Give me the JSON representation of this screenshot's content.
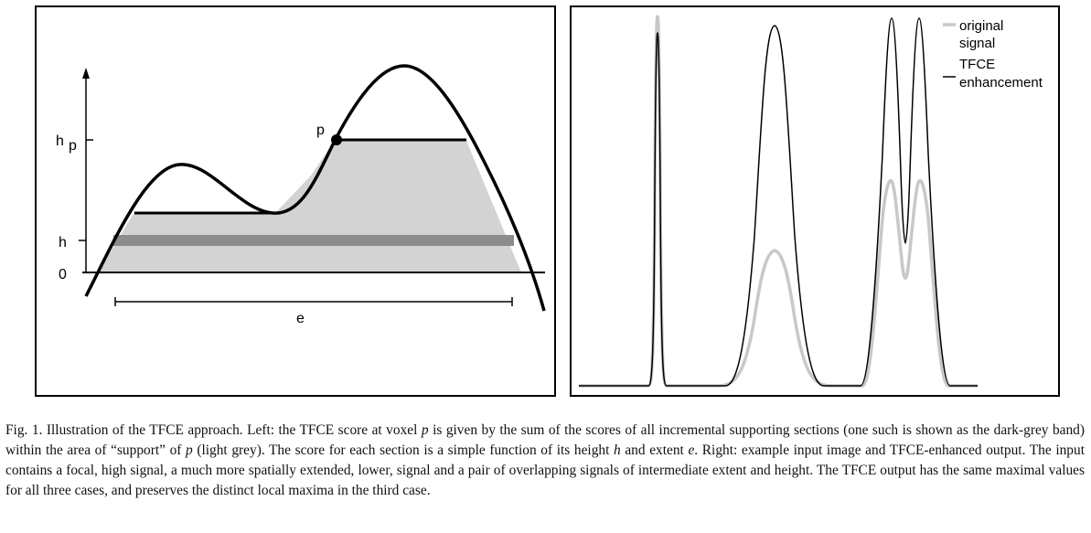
{
  "left_figure": {
    "y_axis_labels": {
      "h_p": "h",
      "h_p_sub": "p",
      "h": "h",
      "zero": "0"
    },
    "point_label": "p",
    "extent_label": "e"
  },
  "right_figure": {
    "legend": [
      {
        "label_line1": "original",
        "label_line2": "signal",
        "color": "#c8c8c8"
      },
      {
        "label_line1": "TFCE",
        "label_line2": "enhancement",
        "color": "#000000"
      }
    ]
  },
  "caption": {
    "t1": "Fig. 1. Illustration of the TFCE approach. Left: the TFCE score at voxel ",
    "v1": "p",
    "t2": " is given by the sum of the scores of all incremental supporting sections (one such is shown as the dark-grey band) within the area of “support” of ",
    "v2": "p",
    "t3": " (light grey). The score for each section is a simple function of its height ",
    "v3": "h",
    "t4": " and extent ",
    "v4": "e",
    "t5": ". Right: example input image and TFCE-enhanced output. The input contains a focal, high signal, a much more spatially extended, lower, signal and a pair of overlapping signals of intermediate extent and height. The TFCE output has the same maximal values for all three cases, and preserves the distinct local maxima in the third case."
  },
  "colors": {
    "support_fill": "#d3d3d3",
    "band": "#8c8c8c",
    "original_signal": "#c8c8c8",
    "tfce": "#000000"
  }
}
